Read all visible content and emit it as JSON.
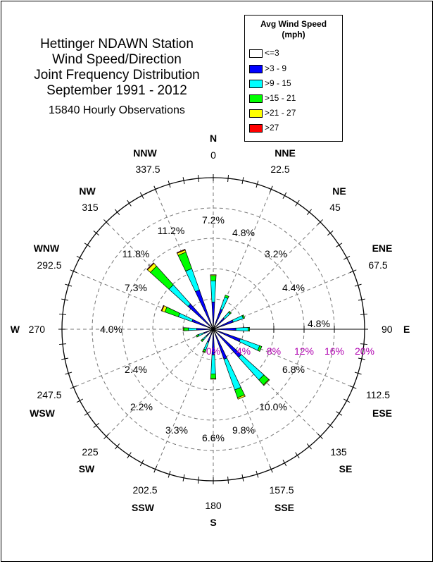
{
  "title_lines": [
    "Hettinger NDAWN Station",
    "Wind Speed/Direction",
    "Joint Frequency Distribution",
    "September 1991 - 2012"
  ],
  "subtitle": "15840 Hourly Observations",
  "legend": {
    "title_line1": "Avg Wind Speed",
    "title_line2": "(mph)",
    "items": [
      {
        "label": "<=3",
        "color": "#ffffff"
      },
      {
        "label": ">3 - 9",
        "color": "#0000ff"
      },
      {
        "label": ">9 - 15",
        "color": "#00ffff"
      },
      {
        "label": ">15 - 21",
        "color": "#00ff00"
      },
      {
        "label": ">21 - 27",
        "color": "#ffff00"
      },
      {
        "label": ">27",
        "color": "#ff0000"
      }
    ]
  },
  "chart_data": {
    "type": "wind-rose",
    "title": "Hettinger NDAWN Station Wind Speed/Direction Joint Frequency Distribution September 1991 - 2012",
    "radial_ticks": [
      "0%",
      "4%",
      "8%",
      "12%",
      "16%",
      "20%"
    ],
    "radial_max": 20,
    "direction_names": [
      "N",
      "NNE",
      "NE",
      "ENE",
      "E",
      "ESE",
      "SE",
      "SSE",
      "S",
      "SSW",
      "SW",
      "WSW",
      "W",
      "WNW",
      "NW",
      "NNW"
    ],
    "direction_degrees": [
      "0",
      "22.5",
      "45",
      "67.5",
      "90",
      "112.5",
      "135",
      "157.5",
      "180",
      "202.5",
      "225",
      "247.5",
      "270",
      "292.5",
      "315",
      "337.5"
    ],
    "direction_percents": [
      "7.2%",
      "4.8%",
      "3.2%",
      "4.4%",
      "4.8%",
      "6.8%",
      "10.0%",
      "9.8%",
      "6.6%",
      "3.3%",
      "2.2%",
      "2.4%",
      "4.0%",
      "7.3%",
      "11.8%",
      "11.2%"
    ],
    "speed_bins": [
      "<=3",
      ">3 - 9",
      ">9 - 15",
      ">15 - 21",
      ">21 - 27",
      ">27"
    ],
    "bin_colors": [
      "#ffffff",
      "#0000ff",
      "#00ffff",
      "#00ff00",
      "#ffff00",
      "#ff0000"
    ],
    "cumulative_by_direction": [
      [
        0.5,
        3.6,
        6.4,
        7.1,
        7.2,
        7.2
      ],
      [
        0.4,
        2.8,
        4.5,
        4.8,
        4.8,
        4.8
      ],
      [
        0.4,
        2.0,
        3.0,
        3.2,
        3.2,
        3.2
      ],
      [
        0.5,
        2.8,
        4.2,
        4.4,
        4.4,
        4.4
      ],
      [
        0.5,
        3.0,
        4.6,
        4.8,
        4.8,
        4.8
      ],
      [
        0.6,
        3.8,
        6.5,
        6.8,
        6.8,
        6.8
      ],
      [
        0.6,
        5.0,
        9.0,
        9.9,
        10.0,
        10.0
      ],
      [
        0.5,
        4.2,
        8.5,
        9.6,
        9.8,
        9.8
      ],
      [
        0.5,
        3.4,
        5.9,
        6.5,
        6.6,
        6.6
      ],
      [
        0.4,
        1.8,
        2.9,
        3.2,
        3.3,
        3.3
      ],
      [
        0.4,
        1.2,
        1.9,
        2.2,
        2.2,
        2.2
      ],
      [
        0.4,
        1.3,
        2.1,
        2.4,
        2.4,
        2.4
      ],
      [
        0.5,
        2.2,
        3.3,
        3.9,
        4.0,
        4.0
      ],
      [
        0.5,
        3.0,
        4.9,
        6.8,
        7.2,
        7.3
      ],
      [
        0.6,
        4.5,
        7.9,
        11.2,
        11.7,
        11.8
      ],
      [
        0.6,
        5.5,
        8.5,
        10.8,
        11.1,
        11.2
      ]
    ]
  }
}
